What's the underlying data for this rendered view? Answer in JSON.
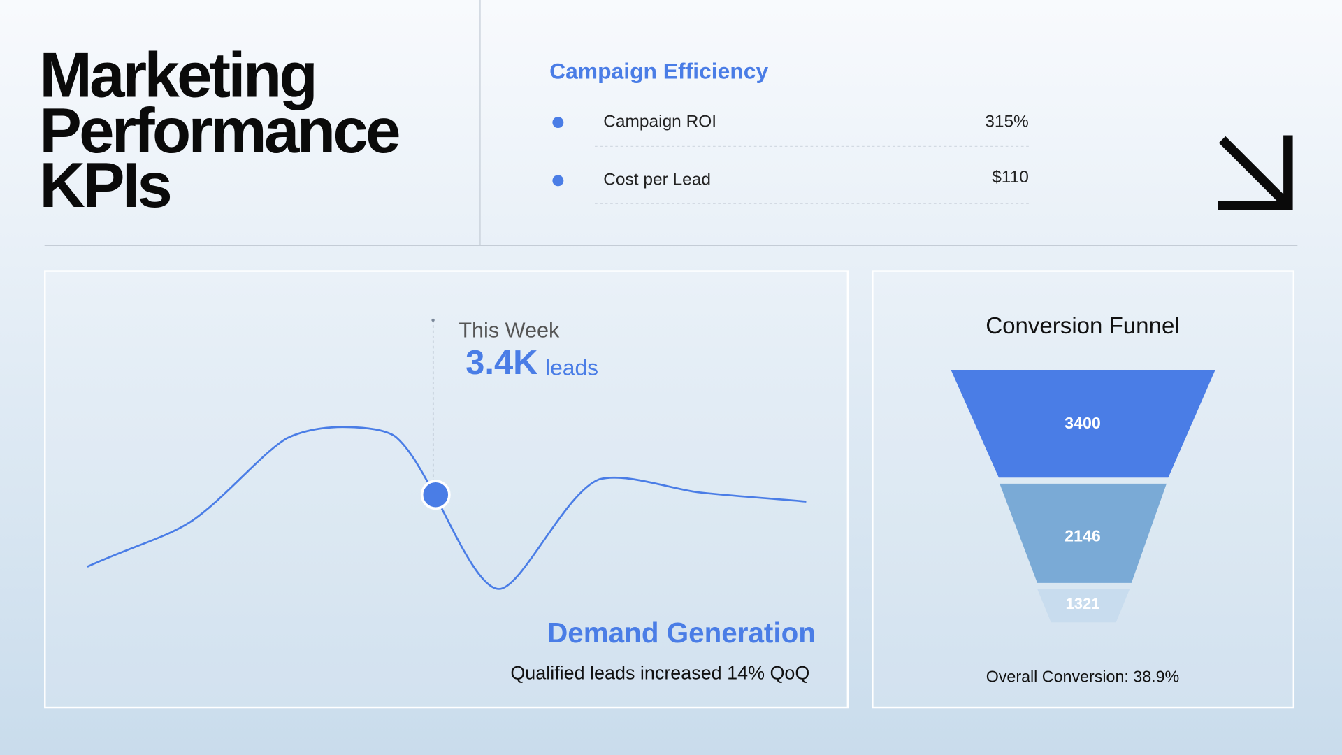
{
  "header": {
    "title": [
      "Marketing",
      "Performance",
      "KPIs"
    ]
  },
  "efficiency": {
    "title": "Campaign Efficiency",
    "items": [
      {
        "label": "Campaign ROI",
        "value": "315%"
      },
      {
        "label": "Cost per Lead",
        "value": "$110"
      }
    ]
  },
  "trend": {
    "label": "This Week",
    "value": "3.4K",
    "unit": "leads",
    "title": "Demand Generation",
    "caption": "Qualified leads increased  14% QoQ"
  },
  "funnel": {
    "title": "Conversion Funnel",
    "stages": [
      3400,
      2146,
      1321
    ],
    "footer": "Overall Conversion: 38.9%"
  }
}
